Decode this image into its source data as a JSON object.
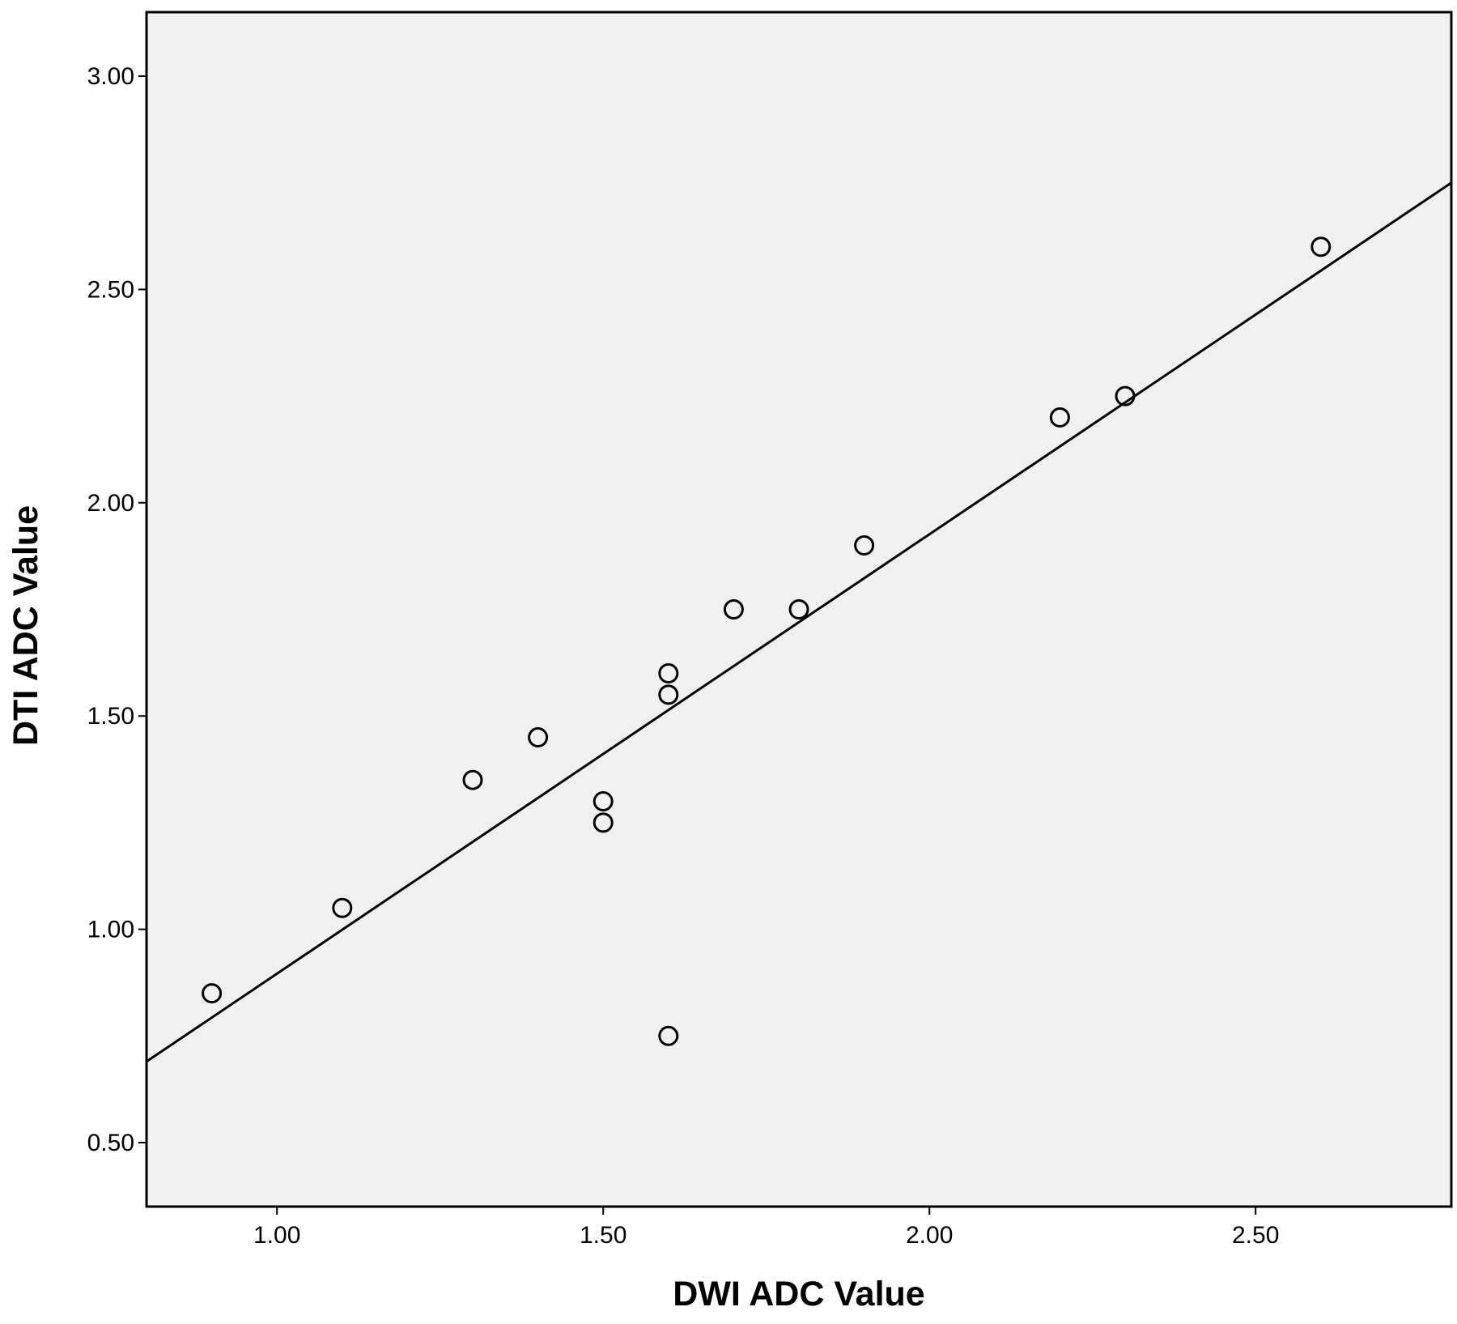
{
  "chart_data": {
    "type": "scatter",
    "title": "",
    "xlabel": "DWI ADC Value",
    "ylabel": "DTI ADC Value",
    "xlim": [
      0.8,
      2.8
    ],
    "ylim": [
      0.35,
      3.15
    ],
    "x_ticks": [
      "1.00",
      "1.50",
      "2.00",
      "2.50"
    ],
    "x_tick_values": [
      1.0,
      1.5,
      2.0,
      2.5
    ],
    "y_ticks": [
      "0.50",
      "1.00",
      "1.50",
      "2.00",
      "2.50",
      "3.00"
    ],
    "y_tick_values": [
      0.5,
      1.0,
      1.5,
      2.0,
      2.5,
      3.0
    ],
    "points": [
      {
        "x": 0.9,
        "y": 0.85
      },
      {
        "x": 1.1,
        "y": 1.05
      },
      {
        "x": 1.3,
        "y": 1.35
      },
      {
        "x": 1.4,
        "y": 1.45
      },
      {
        "x": 1.5,
        "y": 1.3
      },
      {
        "x": 1.5,
        "y": 1.25
      },
      {
        "x": 1.6,
        "y": 1.6
      },
      {
        "x": 1.6,
        "y": 1.55
      },
      {
        "x": 1.6,
        "y": 0.75
      },
      {
        "x": 1.7,
        "y": 1.75
      },
      {
        "x": 1.8,
        "y": 1.75
      },
      {
        "x": 1.9,
        "y": 1.9
      },
      {
        "x": 2.2,
        "y": 2.2
      },
      {
        "x": 2.3,
        "y": 2.25
      },
      {
        "x": 2.6,
        "y": 2.6
      }
    ],
    "fit_line": {
      "x": [
        0.8,
        2.8
      ],
      "y": [
        0.69,
        2.75
      ]
    },
    "grid": false,
    "background": "#f0f0f0"
  }
}
